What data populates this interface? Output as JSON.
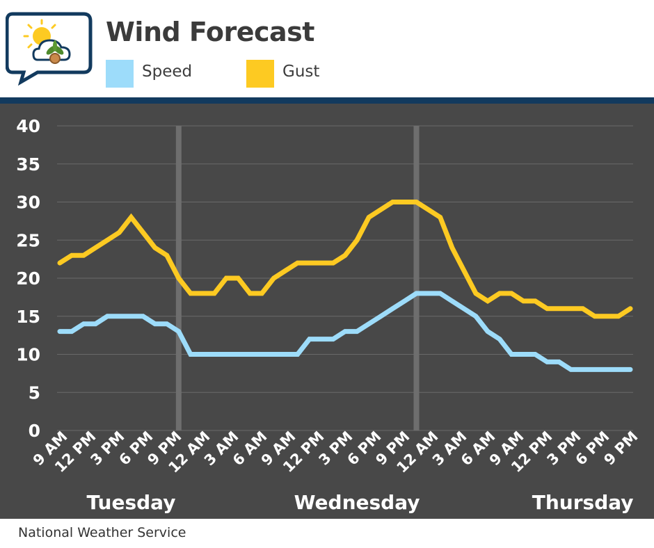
{
  "header": {
    "title": "Wind Forecast",
    "logo_icon": "sun-cloud-plant-chat-icon"
  },
  "legend": [
    {
      "label": "Speed",
      "color": "#9ddcfa"
    },
    {
      "label": "Gust",
      "color": "#fdca22"
    }
  ],
  "source": "National Weather Service",
  "colors": {
    "plot_background": "#484848",
    "divider": "#123a5e",
    "day_separator": "#6e6e6e"
  },
  "chart_data": {
    "type": "line",
    "title": "Wind Forecast",
    "ylim": [
      0,
      40
    ],
    "yticks": [
      "0",
      "5",
      "10",
      "15",
      "20",
      "25",
      "30",
      "35",
      "40"
    ],
    "grid": true,
    "legend_position": "top",
    "xtick_labels": [
      "9 AM",
      "12 PM",
      "3 PM",
      "6 PM",
      "9 PM",
      "12 AM",
      "3 AM",
      "6 AM",
      "9 AM",
      "12 PM",
      "3 PM",
      "6 PM",
      "9 PM",
      "12 AM",
      "3 AM",
      "6 AM",
      "9 AM",
      "12 PM",
      "3 PM",
      "6 PM",
      "9 PM"
    ],
    "day_labels": [
      {
        "label": "Tuesday",
        "center_hour": 9
      },
      {
        "label": "Wednesday",
        "center_hour": 37.5
      },
      {
        "label": "Thursday",
        "center_hour": 66
      }
    ],
    "day_boundaries_hours": [
      15,
      45
    ],
    "x_hours": [
      0,
      1.5,
      3,
      4.5,
      6,
      7.5,
      9,
      10.5,
      12,
      13.5,
      15,
      16.5,
      18,
      19.5,
      21,
      22.5,
      24,
      25.5,
      27,
      28.5,
      30,
      31.5,
      33,
      34.5,
      36,
      37.5,
      39,
      40.5,
      42,
      43.5,
      45,
      46.5,
      48,
      49.5,
      51,
      52.5,
      54,
      55.5,
      57,
      58.5,
      60,
      61.5,
      63,
      64.5,
      66,
      67.5,
      69,
      70.5,
      72
    ],
    "series": [
      {
        "name": "Speed",
        "color": "#9ddcfa",
        "values": [
          13,
          13,
          14,
          14,
          15,
          15,
          15,
          15,
          14,
          14,
          13,
          10,
          10,
          10,
          10,
          10,
          10,
          10,
          10,
          10,
          10,
          12,
          12,
          12,
          13,
          13,
          14,
          15,
          16,
          17,
          18,
          18,
          18,
          17,
          16,
          15,
          13,
          12,
          10,
          10,
          10,
          9,
          9,
          8,
          8,
          8,
          8,
          8,
          8
        ]
      },
      {
        "name": "Gust",
        "color": "#fdca22",
        "values": [
          22,
          23,
          23,
          24,
          25,
          26,
          28,
          26,
          24,
          23,
          20,
          18,
          18,
          18,
          20,
          20,
          18,
          18,
          20,
          21,
          22,
          22,
          22,
          22,
          23,
          25,
          28,
          29,
          30,
          30,
          30,
          29,
          28,
          24,
          21,
          18,
          17,
          18,
          18,
          17,
          17,
          16,
          16,
          16,
          16,
          15,
          15,
          15,
          16
        ]
      }
    ]
  }
}
